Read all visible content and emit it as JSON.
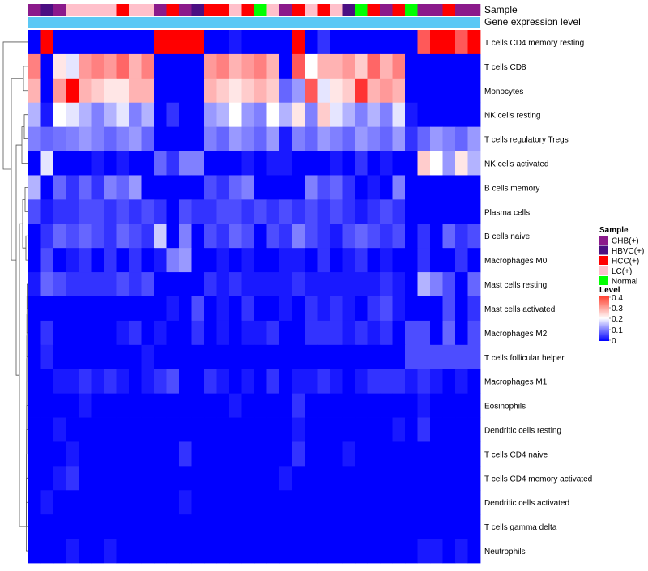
{
  "chart_data": {
    "type": "heatmap",
    "title": "",
    "annotation_labels": {
      "sample": "Sample",
      "gene_expression": "Gene expression level"
    },
    "rows": [
      "T cells CD4 memory resting",
      "T cells CD8",
      "Monocytes",
      "NK cells resting",
      "T cells regulatory  Tregs",
      "NK cells activated",
      "B cells memory",
      "Plasma cells",
      "B cells naive",
      "Macrophages M0",
      "Mast cells resting",
      "Mast cells activated",
      "Macrophages M2",
      "T cells follicular helper",
      "Macrophages M1",
      "Eosinophils",
      "Dendritic cells resting",
      "T cells CD4 naive",
      "T cells CD4 memory activated",
      "Dendritic cells activated",
      "T cells gamma delta",
      "Neutrophils"
    ],
    "sample_groups": [
      "CHB(+)",
      "HBVC(+)",
      "CHB(+)",
      "LC(+)",
      "LC(+)",
      "LC(+)",
      "LC(+)",
      "HCC(+)",
      "LC(+)",
      "LC(+)",
      "CHB(+)",
      "HCC(+)",
      "CHB(+)",
      "HBVC(+)",
      "HCC(+)",
      "HCC(+)",
      "LC(+)",
      "HCC(+)",
      "Normal",
      "LC(+)",
      "CHB(+)",
      "HCC(+)",
      "LC(+)",
      "HCC(+)",
      "LC(+)",
      "HBVC(+)",
      "Normal",
      "HCC(+)",
      "CHB(+)",
      "HCC(+)",
      "Normal",
      "CHB(+)",
      "CHB(+)",
      "HCC(+)",
      "CHB(+)",
      "CHB(+)"
    ],
    "values": [
      [
        0.0,
        0.4,
        0.0,
        0.0,
        0.0,
        0.0,
        0.0,
        0.0,
        0.0,
        0.0,
        0.4,
        0.4,
        0.4,
        0.4,
        0.0,
        0.0,
        0.02,
        0.0,
        0.0,
        0.0,
        0.0,
        0.4,
        0.0,
        0.04,
        0.0,
        0.0,
        0.0,
        0.0,
        0.0,
        0.0,
        0.0,
        0.33,
        0.4,
        0.4,
        0.33,
        0.4
      ],
      [
        0.3,
        0.0,
        0.22,
        0.18,
        0.28,
        0.3,
        0.28,
        0.32,
        0.26,
        0.3,
        0.0,
        0.0,
        0.0,
        0.0,
        0.28,
        0.3,
        0.26,
        0.28,
        0.3,
        0.26,
        0.0,
        0.33,
        0.2,
        0.26,
        0.26,
        0.28,
        0.24,
        0.32,
        0.26,
        0.3,
        0.0,
        0.0,
        0.0,
        0.0,
        0.0,
        0.0
      ],
      [
        0.26,
        0.0,
        0.28,
        0.4,
        0.26,
        0.24,
        0.22,
        0.22,
        0.26,
        0.26,
        0.0,
        0.0,
        0.0,
        0.0,
        0.26,
        0.24,
        0.22,
        0.24,
        0.26,
        0.24,
        0.08,
        0.12,
        0.33,
        0.18,
        0.22,
        0.24,
        0.36,
        0.26,
        0.28,
        0.26,
        0.0,
        0.0,
        0.0,
        0.0,
        0.0,
        0.0
      ],
      [
        0.14,
        0.02,
        0.2,
        0.18,
        0.14,
        0.1,
        0.14,
        0.18,
        0.1,
        0.14,
        0.0,
        0.04,
        0.0,
        0.0,
        0.12,
        0.14,
        0.2,
        0.12,
        0.1,
        0.2,
        0.14,
        0.22,
        0.1,
        0.24,
        0.18,
        0.14,
        0.1,
        0.14,
        0.1,
        0.18,
        0.02,
        0.0,
        0.0,
        0.0,
        0.0,
        0.0
      ],
      [
        0.1,
        0.08,
        0.09,
        0.1,
        0.12,
        0.1,
        0.08,
        0.1,
        0.12,
        0.08,
        0.0,
        0.0,
        0.0,
        0.0,
        0.1,
        0.08,
        0.12,
        0.1,
        0.08,
        0.12,
        0.02,
        0.1,
        0.08,
        0.12,
        0.1,
        0.08,
        0.12,
        0.1,
        0.08,
        0.12,
        0.04,
        0.08,
        0.12,
        0.1,
        0.08,
        0.12
      ],
      [
        0.0,
        0.18,
        0.0,
        0.0,
        0.0,
        0.02,
        0.0,
        0.02,
        0.0,
        0.0,
        0.08,
        0.04,
        0.1,
        0.1,
        0.0,
        0.0,
        0.0,
        0.02,
        0.0,
        0.02,
        0.02,
        0.0,
        0.0,
        0.0,
        0.02,
        0.0,
        0.04,
        0.0,
        0.02,
        0.0,
        0.0,
        0.24,
        0.2,
        0.12,
        0.22,
        0.14
      ],
      [
        0.14,
        0.0,
        0.08,
        0.04,
        0.08,
        0.04,
        0.1,
        0.08,
        0.12,
        0.0,
        0.0,
        0.0,
        0.0,
        0.0,
        0.06,
        0.04,
        0.08,
        0.1,
        0.0,
        0.0,
        0.0,
        0.0,
        0.1,
        0.06,
        0.08,
        0.04,
        0.0,
        0.02,
        0.0,
        0.1,
        0.0,
        0.0,
        0.0,
        0.0,
        0.0,
        0.0
      ],
      [
        0.06,
        0.02,
        0.04,
        0.04,
        0.06,
        0.06,
        0.04,
        0.06,
        0.04,
        0.06,
        0.04,
        0.0,
        0.06,
        0.04,
        0.04,
        0.06,
        0.06,
        0.04,
        0.06,
        0.04,
        0.06,
        0.04,
        0.06,
        0.04,
        0.06,
        0.04,
        0.02,
        0.04,
        0.06,
        0.04,
        0.0,
        0.0,
        0.0,
        0.0,
        0.0,
        0.0
      ],
      [
        0.0,
        0.04,
        0.08,
        0.06,
        0.08,
        0.06,
        0.04,
        0.08,
        0.06,
        0.04,
        0.16,
        0.0,
        0.1,
        0.0,
        0.06,
        0.04,
        0.08,
        0.06,
        0.0,
        0.06,
        0.04,
        0.1,
        0.06,
        0.04,
        0.02,
        0.06,
        0.08,
        0.06,
        0.04,
        0.06,
        0.0,
        0.04,
        0.0,
        0.08,
        0.04,
        0.06
      ],
      [
        0.0,
        0.06,
        0.0,
        0.02,
        0.04,
        0.0,
        0.04,
        0.0,
        0.04,
        0.0,
        0.02,
        0.1,
        0.12,
        0.0,
        0.0,
        0.02,
        0.0,
        0.02,
        0.0,
        0.0,
        0.02,
        0.02,
        0.0,
        0.04,
        0.0,
        0.02,
        0.04,
        0.0,
        0.02,
        0.0,
        0.0,
        0.04,
        0.0,
        0.0,
        0.04,
        0.0
      ],
      [
        0.02,
        0.08,
        0.06,
        0.04,
        0.04,
        0.04,
        0.04,
        0.06,
        0.04,
        0.06,
        0.0,
        0.0,
        0.0,
        0.0,
        0.04,
        0.02,
        0.04,
        0.02,
        0.02,
        0.02,
        0.02,
        0.04,
        0.02,
        0.02,
        0.02,
        0.02,
        0.02,
        0.02,
        0.04,
        0.02,
        0.0,
        0.14,
        0.1,
        0.06,
        0.0,
        0.08
      ],
      [
        0.0,
        0.0,
        0.0,
        0.0,
        0.0,
        0.0,
        0.0,
        0.0,
        0.0,
        0.0,
        0.0,
        0.02,
        0.0,
        0.06,
        0.0,
        0.02,
        0.0,
        0.04,
        0.0,
        0.0,
        0.02,
        0.0,
        0.04,
        0.02,
        0.04,
        0.02,
        0.0,
        0.04,
        0.06,
        0.02,
        0.0,
        0.0,
        0.0,
        0.06,
        0.0,
        0.04
      ],
      [
        0.0,
        0.04,
        0.0,
        0.0,
        0.0,
        0.0,
        0.0,
        0.02,
        0.04,
        0.0,
        0.02,
        0.0,
        0.0,
        0.04,
        0.0,
        0.02,
        0.0,
        0.02,
        0.02,
        0.04,
        0.0,
        0.0,
        0.04,
        0.04,
        0.04,
        0.02,
        0.04,
        0.02,
        0.04,
        0.0,
        0.06,
        0.06,
        0.0,
        0.08,
        0.0,
        0.06
      ],
      [
        0.0,
        0.03,
        0.0,
        0.0,
        0.0,
        0.0,
        0.0,
        0.0,
        0.0,
        0.02,
        0.0,
        0.0,
        0.0,
        0.0,
        0.0,
        0.0,
        0.0,
        0.0,
        0.0,
        0.0,
        0.0,
        0.0,
        0.0,
        0.0,
        0.0,
        0.0,
        0.0,
        0.0,
        0.0,
        0.0,
        0.06,
        0.06,
        0.06,
        0.06,
        0.06,
        0.06
      ],
      [
        0.0,
        0.0,
        0.02,
        0.02,
        0.04,
        0.02,
        0.04,
        0.02,
        0.0,
        0.02,
        0.04,
        0.06,
        0.0,
        0.0,
        0.04,
        0.02,
        0.0,
        0.02,
        0.0,
        0.04,
        0.0,
        0.02,
        0.02,
        0.04,
        0.02,
        0.0,
        0.02,
        0.04,
        0.04,
        0.04,
        0.02,
        0.04,
        0.02,
        0.0,
        0.02,
        0.0
      ],
      [
        0.0,
        0.0,
        0.0,
        0.0,
        0.02,
        0.0,
        0.0,
        0.0,
        0.0,
        0.0,
        0.0,
        0.0,
        0.0,
        0.0,
        0.0,
        0.0,
        0.02,
        0.0,
        0.0,
        0.0,
        0.0,
        0.04,
        0.0,
        0.0,
        0.0,
        0.0,
        0.0,
        0.0,
        0.0,
        0.0,
        0.0,
        0.02,
        0.0,
        0.0,
        0.0,
        0.0
      ],
      [
        0.0,
        0.0,
        0.02,
        0.0,
        0.0,
        0.0,
        0.0,
        0.0,
        0.0,
        0.0,
        0.0,
        0.0,
        0.0,
        0.0,
        0.0,
        0.0,
        0.0,
        0.0,
        0.0,
        0.0,
        0.0,
        0.02,
        0.0,
        0.0,
        0.0,
        0.0,
        0.0,
        0.0,
        0.0,
        0.02,
        0.0,
        0.04,
        0.0,
        0.0,
        0.0,
        0.0
      ],
      [
        0.0,
        0.0,
        0.0,
        0.02,
        0.0,
        0.0,
        0.0,
        0.0,
        0.0,
        0.0,
        0.0,
        0.0,
        0.04,
        0.0,
        0.0,
        0.0,
        0.0,
        0.0,
        0.0,
        0.0,
        0.0,
        0.04,
        0.0,
        0.0,
        0.0,
        0.02,
        0.0,
        0.0,
        0.0,
        0.0,
        0.0,
        0.0,
        0.0,
        0.0,
        0.0,
        0.0
      ],
      [
        0.0,
        0.0,
        0.02,
        0.04,
        0.0,
        0.0,
        0.0,
        0.0,
        0.0,
        0.0,
        0.0,
        0.0,
        0.0,
        0.0,
        0.0,
        0.0,
        0.0,
        0.0,
        0.0,
        0.0,
        0.02,
        0.0,
        0.0,
        0.0,
        0.0,
        0.0,
        0.0,
        0.0,
        0.0,
        0.0,
        0.0,
        0.0,
        0.0,
        0.0,
        0.0,
        0.0
      ],
      [
        0.0,
        0.02,
        0.0,
        0.0,
        0.0,
        0.0,
        0.0,
        0.0,
        0.0,
        0.0,
        0.0,
        0.0,
        0.02,
        0.0,
        0.0,
        0.0,
        0.0,
        0.0,
        0.0,
        0.0,
        0.0,
        0.0,
        0.0,
        0.0,
        0.0,
        0.0,
        0.0,
        0.0,
        0.0,
        0.0,
        0.0,
        0.0,
        0.0,
        0.0,
        0.0,
        0.0
      ],
      [
        0.0,
        0.0,
        0.0,
        0.0,
        0.0,
        0.0,
        0.0,
        0.0,
        0.0,
        0.0,
        0.0,
        0.0,
        0.0,
        0.0,
        0.0,
        0.0,
        0.0,
        0.0,
        0.0,
        0.0,
        0.0,
        0.0,
        0.0,
        0.0,
        0.0,
        0.0,
        0.0,
        0.0,
        0.0,
        0.0,
        0.0,
        0.0,
        0.0,
        0.0,
        0.0,
        0.0
      ],
      [
        0.0,
        0.0,
        0.0,
        0.02,
        0.0,
        0.0,
        0.02,
        0.0,
        0.0,
        0.0,
        0.0,
        0.0,
        0.0,
        0.0,
        0.0,
        0.0,
        0.0,
        0.0,
        0.0,
        0.0,
        0.0,
        0.0,
        0.0,
        0.0,
        0.0,
        0.0,
        0.0,
        0.0,
        0.0,
        0.0,
        0.0,
        0.02,
        0.02,
        0.0,
        0.02,
        0.0
      ]
    ],
    "color_scale": {
      "min": 0,
      "max": 0.4,
      "colors": [
        "#0000ff",
        "#ffffff",
        "#ff0000"
      ]
    },
    "gene_expression_color": "#5bc8f5",
    "legend_sample": {
      "title": "Sample",
      "items": [
        {
          "label": "CHB(+)",
          "color": "#8b1a8b"
        },
        {
          "label": "HBVC(+)",
          "color": "#4b0f82"
        },
        {
          "label": "HCC(+)",
          "color": "#ff0000"
        },
        {
          "label": "LC(+)",
          "color": "#ffc0cb"
        },
        {
          "label": "Normal",
          "color": "#00ff00"
        }
      ]
    },
    "legend_level": {
      "title": "Level",
      "ticks": [
        "0.4",
        "0.3",
        "0.2",
        "0.1",
        "0"
      ]
    }
  }
}
